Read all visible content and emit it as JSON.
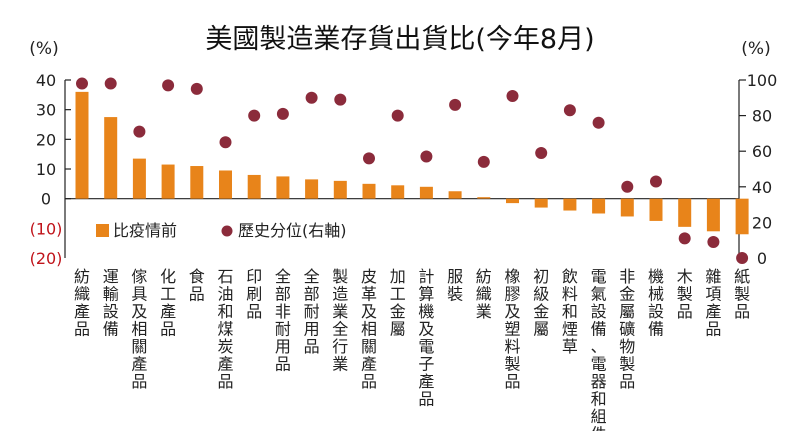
{
  "chart_data": {
    "type": "bar",
    "title": "美國製造業存貨出貨比(今年8月)",
    "left_unit": "(%)",
    "right_unit": "(%)",
    "left_ylim": [
      -20,
      40
    ],
    "right_ylim": [
      0,
      100
    ],
    "left_ticks": [
      "40",
      "30",
      "20",
      "10",
      "0",
      "(10)",
      "(20)"
    ],
    "left_tick_values": [
      40,
      30,
      20,
      10,
      0,
      -10,
      -20
    ],
    "right_ticks": [
      "100",
      "80",
      "60",
      "40",
      "20",
      "0"
    ],
    "right_tick_values": [
      100,
      80,
      60,
      40,
      20,
      0
    ],
    "legend": "top-left",
    "categories": [
      "紡織產品",
      "運輸設備",
      "傢具及相關產品",
      "化工產品",
      "食品",
      "石油和煤炭產品",
      "印刷品",
      "全部非耐用品",
      "全部耐用品",
      "製造業全行業",
      "皮革及相關產品",
      "加工金屬",
      "計算機及電子產品",
      "服裝",
      "紡織業",
      "橡膠及塑料製品",
      "初級金屬",
      "飲料和煙草",
      "電氣設備、電器和組件",
      "非金屬礦物製品",
      "機械設備",
      "木製品",
      "雜項產品",
      "紙製品"
    ],
    "series": [
      {
        "name": "比疫情前",
        "axis": "left",
        "kind": "bar",
        "color": "#e8841a",
        "values": [
          36,
          27.5,
          13.5,
          11.5,
          11,
          9.5,
          8,
          7.5,
          6.5,
          6,
          5,
          4.5,
          4,
          2.5,
          0.5,
          -1.5,
          -3,
          -4,
          -5,
          -6,
          -7.5,
          -9.5,
          -11,
          -12
        ]
      },
      {
        "name": "歷史分位(右軸)",
        "axis": "right",
        "kind": "dot",
        "color": "#8b2b3b",
        "values": [
          98,
          98,
          71,
          97,
          95,
          65,
          80,
          81,
          90,
          89,
          56,
          80,
          57,
          86,
          54,
          91,
          59,
          83,
          76,
          40,
          43,
          11,
          9,
          0
        ]
      }
    ]
  }
}
